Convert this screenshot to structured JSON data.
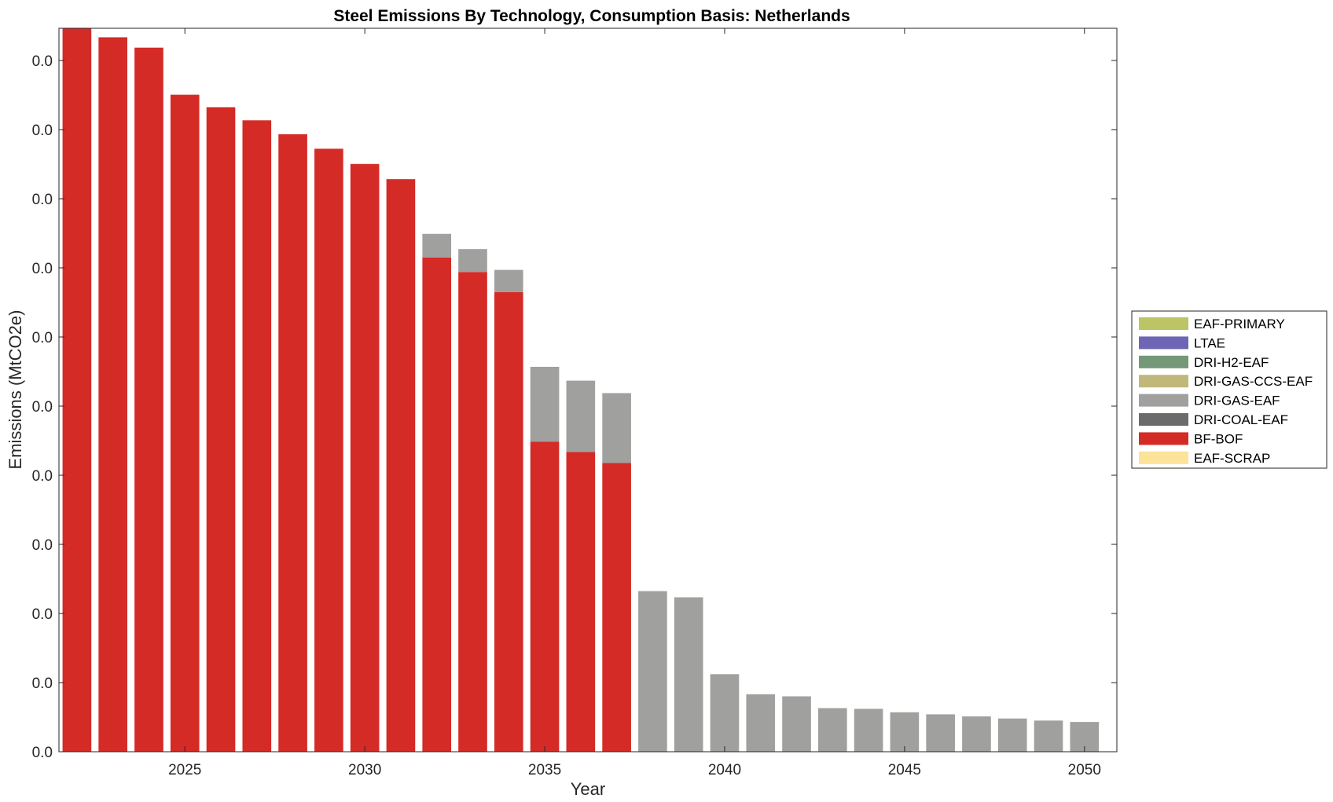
{
  "chart_data": {
    "type": "bar",
    "stacked": true,
    "title": "Steel Emissions By Technology, Consumption Basis: Netherlands",
    "xlabel": "Year",
    "ylabel": "Emissions (MtCO2e)",
    "x": [
      2022,
      2023,
      2024,
      2025,
      2026,
      2027,
      2028,
      2029,
      2030,
      2031,
      2032,
      2033,
      2034,
      2035,
      2036,
      2037,
      2038,
      2039,
      2040,
      2041,
      2042,
      2043,
      2044,
      2045,
      2046,
      2047,
      2048,
      2049,
      2050
    ],
    "xticks": [
      2025,
      2030,
      2035,
      2040,
      2045,
      2050
    ],
    "xtick_labels": [
      "2025",
      "2030",
      "2035",
      "2040",
      "2045",
      "2050"
    ],
    "ytick_labels": [
      "0.0",
      "0.0",
      "0.0",
      "0.0",
      "0.0",
      "0.0",
      "0.0",
      "0.0",
      "0.0",
      "0.0",
      "0.0"
    ],
    "ylim": [
      0,
      10.45
    ],
    "grid": false,
    "legend_position": "right",
    "legend": [
      {
        "name": "EAF-PRIMARY",
        "color": "#bcc466"
      },
      {
        "name": "LTAE",
        "color": "#6e66b4"
      },
      {
        "name": "DRI-H2-EAF",
        "color": "#759878"
      },
      {
        "name": "DRI-GAS-CCS-EAF",
        "color": "#c0b87a"
      },
      {
        "name": "DRI-GAS-EAF",
        "color": "#a0a09e"
      },
      {
        "name": "DRI-COAL-EAF",
        "color": "#6b6b6b"
      },
      {
        "name": "BF-BOF",
        "color": "#d42b26"
      },
      {
        "name": "EAF-SCRAP",
        "color": "#fde39a"
      }
    ],
    "series": [
      {
        "name": "BF-BOF",
        "color": "#d42b26",
        "values": [
          10.45,
          10.32,
          10.17,
          9.49,
          9.31,
          9.12,
          8.92,
          8.71,
          8.49,
          8.27,
          7.14,
          6.93,
          6.64,
          4.48,
          4.33,
          4.17,
          0,
          0,
          0,
          0,
          0,
          0,
          0,
          0,
          0,
          0,
          0,
          0,
          0
        ]
      },
      {
        "name": "DRI-GAS-EAF",
        "color": "#a0a09e",
        "values": [
          0,
          0,
          0,
          0,
          0,
          0,
          0,
          0,
          0,
          0,
          0.34,
          0.33,
          0.32,
          1.08,
          1.03,
          1.01,
          2.32,
          2.23,
          1.12,
          0.83,
          0.8,
          0.63,
          0.62,
          0.57,
          0.54,
          0.51,
          0.48,
          0.45,
          0.43
        ]
      }
    ]
  }
}
